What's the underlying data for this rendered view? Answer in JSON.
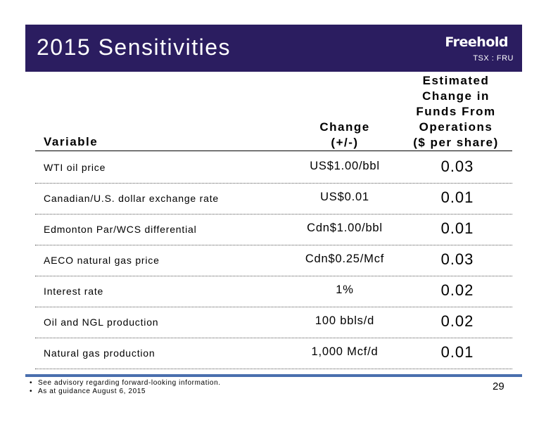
{
  "header": {
    "title": "2015 Sensitivities",
    "logo_text": "Freehold",
    "ticker": "TSX : FRU"
  },
  "table": {
    "columns": {
      "variable": "Variable",
      "change_line1": "Change",
      "change_line2": "(+/-)",
      "ffo_line1": "Estimated",
      "ffo_line2": "Change in",
      "ffo_line3": "Funds From",
      "ffo_line4": "Operations",
      "ffo_line5": "($ per share)"
    },
    "rows": [
      {
        "variable": "WTI oil price",
        "change": "US$1.00/bbl",
        "estimate": "0.03"
      },
      {
        "variable": "Canadian/U.S. dollar exchange rate",
        "change": "US$0.01",
        "estimate": "0.01"
      },
      {
        "variable": "Edmonton Par/WCS differential",
        "change": "Cdn$1.00/bbl",
        "estimate": "0.01"
      },
      {
        "variable": "AECO natural gas price",
        "change": "Cdn$0.25/Mcf",
        "estimate": "0.03"
      },
      {
        "variable": "Interest rate",
        "change": "1%",
        "estimate": "0.02"
      },
      {
        "variable": "Oil and NGL production",
        "change": "100 bbls/d",
        "estimate": "0.02"
      },
      {
        "variable": "Natural gas production",
        "change": "1,000 Mcf/d",
        "estimate": "0.01"
      }
    ]
  },
  "footer": {
    "notes": [
      "See advisory regarding forward-looking information.",
      "As at guidance August 6, 2015"
    ],
    "page_number": "29"
  },
  "colors": {
    "header_bg": "#2b1d60",
    "footer_rule": "#4a6fae"
  }
}
